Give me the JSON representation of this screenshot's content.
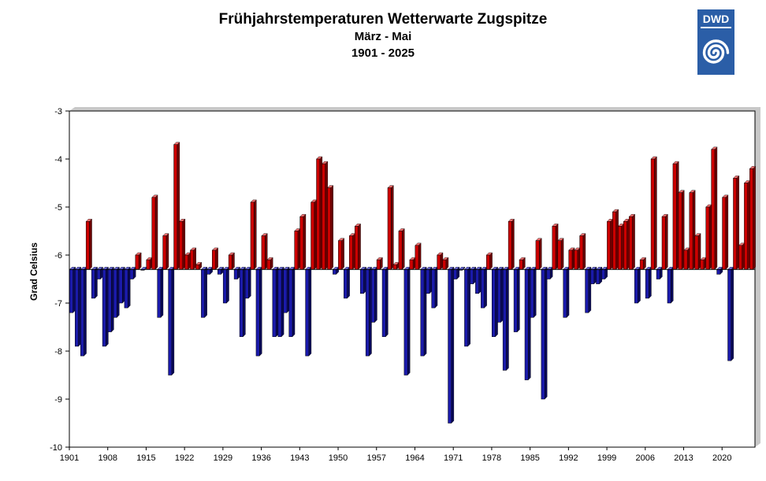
{
  "header": {
    "title": "Frühjahrstemperaturen Wetterwarte Zugspitze",
    "subtitle": "März - Mai",
    "period": "1901 - 2025"
  },
  "logo": {
    "text": "DWD",
    "icon": "dwd-spiral-logo",
    "color": "#2b5ea7"
  },
  "colors": {
    "above": "#cc0000",
    "below": "#1a1aaa",
    "plot_bg": "#ffffff"
  },
  "chart_data": {
    "type": "bar",
    "ylabel": "Grad Celsius",
    "ylim": [
      -10,
      -3
    ],
    "yticks": [
      -3,
      -4,
      -5,
      -6,
      -7,
      -8,
      -9,
      -10
    ],
    "baseline": -6.3,
    "grid": false,
    "x_start": 1901,
    "x_end": 2025,
    "xticks": [
      1901,
      1908,
      1915,
      1922,
      1929,
      1936,
      1943,
      1950,
      1957,
      1964,
      1971,
      1978,
      1985,
      1992,
      1999,
      2006,
      2013,
      2020
    ],
    "values": [
      -7.2,
      -7.9,
      -8.1,
      -5.3,
      -6.9,
      -6.5,
      -7.9,
      -7.6,
      -7.3,
      -7.0,
      -7.1,
      -6.5,
      -6.0,
      -6.3,
      -6.1,
      -4.8,
      -7.3,
      -5.6,
      -8.5,
      -3.7,
      -5.3,
      -6.0,
      -5.9,
      -6.2,
      -7.3,
      -6.4,
      -5.9,
      -6.4,
      -7.0,
      -6.0,
      -6.5,
      -7.7,
      -6.9,
      -4.9,
      -8.1,
      -5.6,
      -6.1,
      -7.7,
      -7.7,
      -7.2,
      -7.7,
      -5.5,
      -5.2,
      -8.1,
      -4.9,
      -4.0,
      -4.1,
      -4.6,
      -6.4,
      -5.7,
      -6.9,
      -5.6,
      -5.4,
      -6.8,
      -8.1,
      -7.4,
      -6.1,
      -7.7,
      -4.6,
      -6.2,
      -5.5,
      -8.5,
      -6.1,
      -5.8,
      -8.1,
      -6.8,
      -7.1,
      -6.0,
      -6.1,
      -9.5,
      -6.5,
      -6.3,
      -7.9,
      -6.6,
      -6.8,
      -7.1,
      -6.0,
      -7.7,
      -7.4,
      -8.4,
      -5.3,
      -7.6,
      -6.1,
      -8.6,
      -7.3,
      -5.7,
      -9.0,
      -6.5,
      -5.4,
      -5.7,
      -7.3,
      -5.9,
      -5.9,
      -5.6,
      -7.2,
      -6.6,
      -6.6,
      -6.5,
      -5.3,
      -5.1,
      -5.4,
      -5.3,
      -5.2,
      -7.0,
      -6.1,
      -6.9,
      -4.0,
      -6.5,
      -5.2,
      -7.0,
      -4.1,
      -4.7,
      -5.9,
      -4.7,
      -5.6,
      -6.1,
      -5.0,
      -3.8,
      -6.4,
      -4.8,
      -8.2,
      -4.4,
      -5.8,
      -4.5,
      -4.2
    ]
  }
}
